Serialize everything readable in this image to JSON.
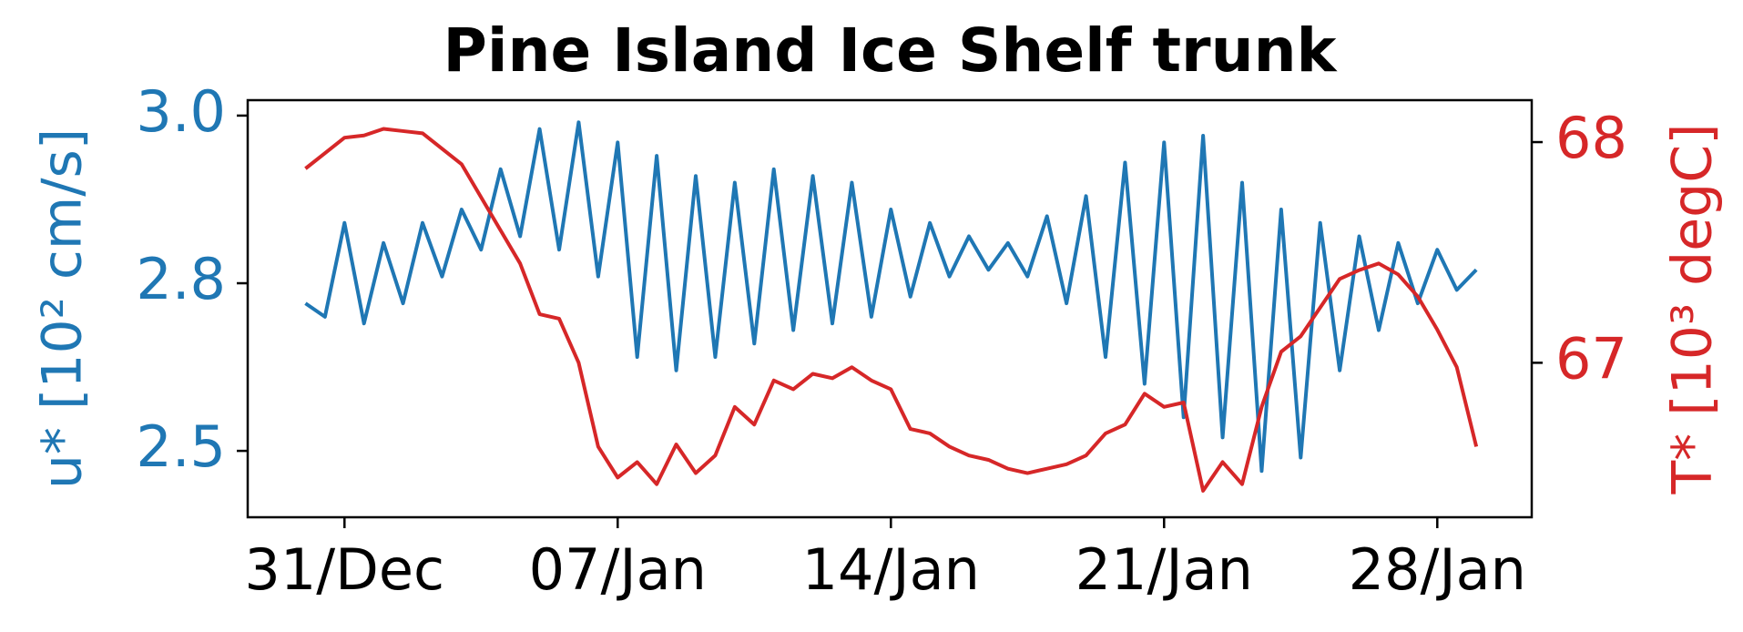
{
  "chart_data": {
    "type": "line",
    "title": "Pine Island Ice Shelf trunk",
    "ylabel": "u* [10² cm/s]",
    "y2label": "T* [10³ degC]",
    "x": [
      -1,
      -0.5,
      0,
      0.5,
      1,
      1.5,
      2,
      2.5,
      3,
      3.5,
      4,
      4.5,
      5,
      5.5,
      6,
      6.5,
      7,
      7.5,
      8,
      8.5,
      9,
      9.5,
      10,
      10.5,
      11,
      11.5,
      12,
      12.5,
      13,
      13.5,
      14,
      14.5,
      15,
      15.5,
      16,
      16.5,
      17,
      17.5,
      18,
      18.5,
      19,
      19.5,
      20,
      20.5,
      21,
      21.5,
      22,
      22.5,
      23,
      23.5,
      24,
      24.5,
      25,
      25.5,
      26,
      26.5,
      27,
      27.5,
      28,
      28.5,
      29
    ],
    "xlim": [
      -2.48,
      30.42
    ],
    "xticks": [
      {
        "value": 0,
        "label": "31/Dec"
      },
      {
        "value": 7,
        "label": "07/Jan"
      },
      {
        "value": 14,
        "label": "14/Jan"
      },
      {
        "value": 21,
        "label": "21/Jan"
      },
      {
        "value": 28,
        "label": "28/Jan"
      }
    ],
    "ylim": [
      2.401,
      3.023
    ],
    "yticks": [
      {
        "value": 2.5,
        "label": "2.5"
      },
      {
        "value": 2.75,
        "label": "2.8"
      },
      {
        "value": 3.0,
        "label": "3.0"
      }
    ],
    "y2lim": [
      66.3,
      68.19
    ],
    "y2ticks": [
      67,
      68
    ],
    "series": [
      {
        "name": "u*",
        "color": "#1f77b4",
        "axis": "y",
        "values": [
          2.72,
          2.7,
          2.84,
          2.69,
          2.81,
          2.72,
          2.84,
          2.76,
          2.86,
          2.8,
          2.92,
          2.82,
          2.98,
          2.8,
          2.99,
          2.76,
          2.96,
          2.64,
          2.94,
          2.62,
          2.91,
          2.64,
          2.9,
          2.66,
          2.92,
          2.68,
          2.91,
          2.69,
          2.9,
          2.7,
          2.86,
          2.73,
          2.84,
          2.76,
          2.82,
          2.77,
          2.81,
          2.76,
          2.85,
          2.72,
          2.88,
          2.64,
          2.93,
          2.6,
          2.96,
          2.55,
          2.97,
          2.52,
          2.9,
          2.47,
          2.86,
          2.49,
          2.84,
          2.62,
          2.82,
          2.68,
          2.81,
          2.72,
          2.8,
          2.74,
          2.77
        ]
      },
      {
        "name": "T*",
        "color": "#d62728",
        "axis": "y2",
        "values": [
          67.88,
          67.95,
          68.02,
          68.03,
          68.06,
          68.05,
          68.04,
          67.97,
          67.9,
          67.75,
          67.6,
          67.45,
          67.22,
          67.2,
          67.0,
          66.62,
          66.48,
          66.55,
          66.45,
          66.63,
          66.5,
          66.58,
          66.8,
          66.72,
          66.92,
          66.88,
          66.95,
          66.93,
          66.98,
          66.92,
          66.88,
          66.7,
          66.68,
          66.62,
          66.58,
          66.56,
          66.52,
          66.5,
          66.52,
          66.54,
          66.58,
          66.68,
          66.72,
          66.86,
          66.8,
          66.82,
          66.42,
          66.55,
          66.45,
          66.8,
          67.05,
          67.12,
          67.25,
          67.38,
          67.42,
          67.45,
          67.4,
          67.3,
          67.15,
          66.98,
          66.62
        ]
      }
    ]
  }
}
